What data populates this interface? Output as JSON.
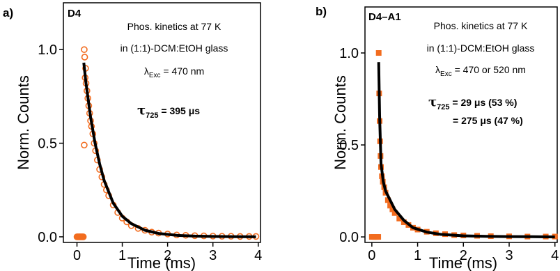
{
  "chart_data": [
    {
      "type": "scatter",
      "panel_label": "a)",
      "sample": "D4",
      "xlabel": "Time (ms)",
      "ylabel": "Norm. Counts",
      "xlim": [
        -0.3,
        4.05
      ],
      "ylim": [
        -0.03,
        1.25
      ],
      "xticks": [
        "0",
        "1",
        "2",
        "3",
        "4"
      ],
      "yticks": [
        "0.0",
        "0.5",
        "1.0"
      ],
      "marker": "open-circle",
      "colors": {
        "data": "#f26c1f",
        "fit": "#000000"
      },
      "annotations": {
        "line1": "Phos. kinetics at 77 K",
        "line2": "in (1:1)-DCM:EtOH glass",
        "exc_lambda": "λ",
        "exc_sub": "Exc",
        "exc_value": " = 470 nm",
        "tau_symbol": "τ",
        "tau_sub": "725",
        "tau_value": " = 395 μs"
      },
      "series": [
        {
          "role": "data",
          "x": [
            0.0,
            0.02,
            0.04,
            0.06,
            0.08,
            0.1,
            0.12,
            0.14,
            0.16,
            0.16,
            0.17,
            0.18,
            0.19,
            0.2,
            0.22,
            0.24,
            0.26,
            0.28,
            0.3,
            0.32,
            0.35,
            0.38,
            0.41,
            0.45,
            0.5,
            0.55,
            0.6,
            0.65,
            0.7,
            0.8,
            0.9,
            1.0,
            1.1,
            1.2,
            1.35,
            1.5,
            1.65,
            1.8,
            2.0,
            2.2,
            2.4,
            2.6,
            2.8,
            3.0,
            3.2,
            3.4,
            3.6,
            3.8,
            3.95
          ],
          "y": [
            0.0,
            0.0,
            0.0,
            0.0,
            0.0,
            0.0,
            0.0,
            0.0,
            0.49,
            1.0,
            0.96,
            0.85,
            0.9,
            0.82,
            0.78,
            0.74,
            0.7,
            0.66,
            0.62,
            0.59,
            0.55,
            0.5,
            0.46,
            0.41,
            0.36,
            0.32,
            0.28,
            0.25,
            0.22,
            0.17,
            0.13,
            0.1,
            0.08,
            0.06,
            0.045,
            0.035,
            0.025,
            0.02,
            0.015,
            0.01,
            0.008,
            0.006,
            0.005,
            0.004,
            0.003,
            0.003,
            0.002,
            0.002,
            0.002
          ]
        },
        {
          "role": "fit",
          "x": [
            0.15,
            0.2,
            0.3,
            0.4,
            0.5,
            0.6,
            0.8,
            1.0,
            1.2,
            1.5,
            1.8,
            2.2,
            2.6,
            3.0,
            3.5,
            3.95
          ],
          "y": [
            0.93,
            0.82,
            0.64,
            0.5,
            0.39,
            0.3,
            0.18,
            0.11,
            0.07,
            0.035,
            0.018,
            0.008,
            0.004,
            0.002,
            0.001,
            0.0
          ]
        }
      ]
    },
    {
      "type": "scatter",
      "panel_label": "b)",
      "sample": "D4–A1",
      "xlabel": "Time (ms)",
      "ylabel": "Norm. Counts",
      "xlim": [
        -0.15,
        4.05
      ],
      "ylim": [
        -0.03,
        1.25
      ],
      "xticks": [
        "0",
        "1",
        "2",
        "3",
        "4"
      ],
      "yticks": [
        "0.0",
        "0.5",
        "1.0"
      ],
      "marker": "filled-square",
      "colors": {
        "data": "#f26c1f",
        "fit": "#000000"
      },
      "annotations": {
        "line1": "Phos. kinetics at 77 K",
        "line2": "in (1:1)-DCM:EtOH glass",
        "exc_lambda": "λ",
        "exc_sub": "Exc",
        "exc_value": " = 470 or 520 nm",
        "tau_symbol": "τ",
        "tau_sub": "725",
        "tau_value": " = 29 μs (53 %)",
        "tau_value2": "= 275 μs (47 %)"
      },
      "series": [
        {
          "role": "data",
          "x": [
            0.0,
            0.03,
            0.06,
            0.09,
            0.12,
            0.14,
            0.15,
            0.16,
            0.17,
            0.18,
            0.19,
            0.2,
            0.22,
            0.24,
            0.27,
            0.3,
            0.35,
            0.4,
            0.45,
            0.5,
            0.6,
            0.7,
            0.8,
            0.9,
            1.0,
            1.2,
            1.4,
            1.6,
            1.8,
            2.0,
            2.3,
            2.6,
            3.0,
            3.4,
            3.8,
            4.0
          ],
          "y": [
            0.0,
            0.0,
            0.0,
            0.0,
            0.0,
            0.0,
            1.0,
            0.78,
            0.63,
            0.52,
            0.44,
            0.38,
            0.33,
            0.3,
            0.27,
            0.24,
            0.2,
            0.17,
            0.15,
            0.13,
            0.1,
            0.08,
            0.065,
            0.05,
            0.04,
            0.028,
            0.02,
            0.015,
            0.01,
            0.008,
            0.006,
            0.004,
            0.003,
            0.002,
            0.002,
            0.002
          ]
        },
        {
          "role": "fit",
          "x": [
            0.15,
            0.17,
            0.2,
            0.25,
            0.3,
            0.4,
            0.5,
            0.7,
            0.9,
            1.2,
            1.5,
            2.0,
            2.5,
            3.0,
            3.5,
            4.0
          ],
          "y": [
            0.95,
            0.66,
            0.4,
            0.3,
            0.25,
            0.2,
            0.15,
            0.09,
            0.05,
            0.026,
            0.014,
            0.006,
            0.003,
            0.002,
            0.001,
            0.0
          ]
        }
      ]
    }
  ]
}
